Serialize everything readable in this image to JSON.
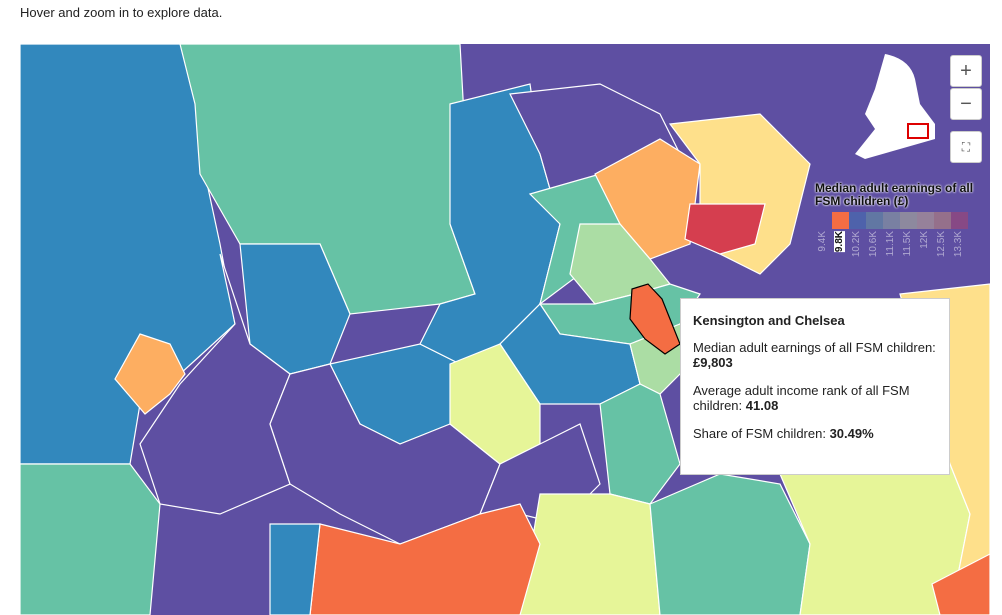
{
  "header": {
    "instruction": "Hover and zoom in to explore data."
  },
  "controls": {
    "zoom_in": "+",
    "zoom_out": "−"
  },
  "legend": {
    "title": "Median adult earnings of all FSM children (£)",
    "labels": [
      "9.4K",
      "9.8K",
      "10.2K",
      "10.6K",
      "11.1K",
      "11.5K",
      "12K",
      "12.5K",
      "13.3K"
    ]
  },
  "tooltip": {
    "area": "Kensington and Chelsea",
    "rows": [
      {
        "label": "Median adult earnings of all FSM children:",
        "value": "£9,803"
      },
      {
        "label": "Average adult income rank of all FSM children:",
        "value": "41.08"
      },
      {
        "label": "Share of FSM children:",
        "value": "30.49%"
      }
    ]
  }
}
